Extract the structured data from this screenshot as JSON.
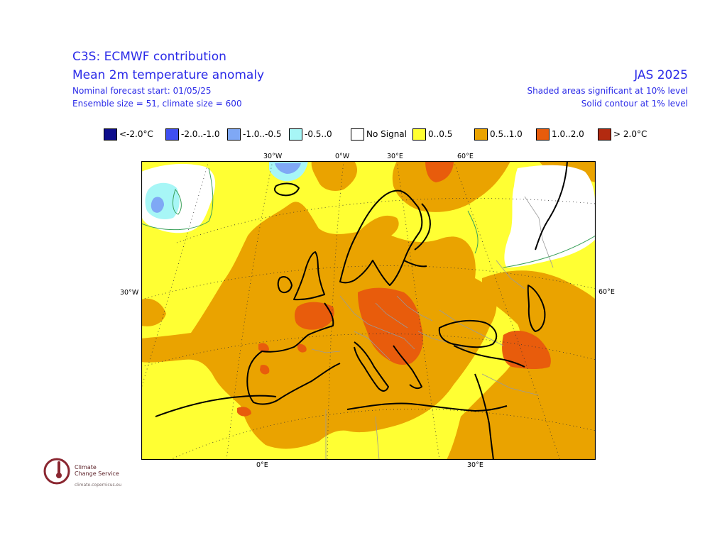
{
  "header": {
    "line1": "C3S: ECMWF contribution",
    "line2": "Mean 2m temperature anomaly",
    "line3": "Nominal forecast start: 01/05/25",
    "line4": "Ensemble size = 51, climate size = 600",
    "period": "JAS 2025",
    "sig10": "Shaded areas significant at 10% level",
    "sig1": "Solid contour at 1% level"
  },
  "legend": [
    {
      "label": "<-2.0°C",
      "color": "#0d0d8c"
    },
    {
      "label": "-2.0..-1.0",
      "color": "#3f4ff2"
    },
    {
      "label": "-1.0..-0.5",
      "color": "#7fa8f5"
    },
    {
      "label": "-0.5..0",
      "color": "#a7f6f6"
    },
    {
      "label": "No Signal",
      "color": "#ffffff"
    },
    {
      "label": "0..0.5",
      "color": "#ffff33"
    },
    {
      "label": "0.5..1.0",
      "color": "#eaa300"
    },
    {
      "label": "1.0..2.0",
      "color": "#e85c0c"
    },
    {
      "label": "> 2.0°C",
      "color": "#b32a10"
    }
  ],
  "axes": {
    "top": [
      "30°W",
      "0°W",
      "30°E",
      "60°E"
    ],
    "left": "30°W",
    "right": "60°E",
    "bottom": [
      "0°E",
      "30°E"
    ]
  },
  "logo": {
    "name1": "Climate",
    "name2": "Change Service",
    "url": "climate.copernicus.eu"
  }
}
